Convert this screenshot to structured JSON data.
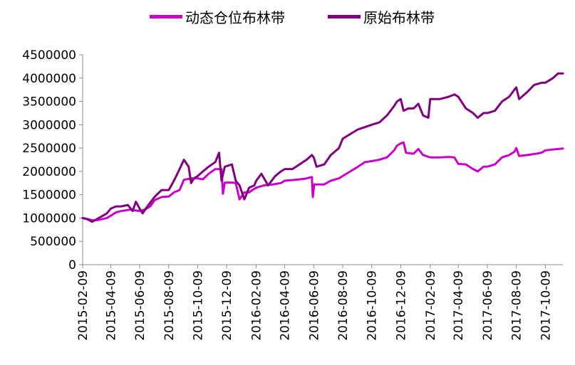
{
  "chart_data": {
    "type": "line",
    "title": "",
    "xlabel": "",
    "ylabel": "",
    "ylim": [
      0,
      4500000
    ],
    "y_ticks": [
      0,
      500000,
      1000000,
      1500000,
      2000000,
      2500000,
      3000000,
      3500000,
      4000000,
      4500000
    ],
    "y_tick_labels": [
      "0",
      "500000",
      "1000000",
      "1500000",
      "2000000",
      "2500000",
      "3000000",
      "3500000",
      "4000000",
      "4500000"
    ],
    "x_tick_labels": [
      "2015-02-09",
      "2015-04-09",
      "2015-06-09",
      "2015-08-09",
      "2015-10-09",
      "2015-12-09",
      "2016-02-09",
      "2016-04-09",
      "2016-06-09",
      "2016-08-09",
      "2016-10-09",
      "2016-12-09",
      "2017-02-09",
      "2017-04-09",
      "2017-06-09",
      "2017-08-09",
      "2017-10-09"
    ],
    "x_range": [
      "2015-02-09",
      "2017-11-15"
    ],
    "grid": false,
    "legend_position": "top",
    "series": [
      {
        "name": "动态仓位布林带",
        "color": "#cc00cc",
        "points": [
          [
            "2015-02-09",
            1000000
          ],
          [
            "2015-02-20",
            980000
          ],
          [
            "2015-03-01",
            950000
          ],
          [
            "2015-03-15",
            960000
          ],
          [
            "2015-04-01",
            1000000
          ],
          [
            "2015-04-09",
            1050000
          ],
          [
            "2015-04-20",
            1120000
          ],
          [
            "2015-05-01",
            1150000
          ],
          [
            "2015-05-20",
            1180000
          ],
          [
            "2015-06-09",
            1150000
          ],
          [
            "2015-06-20",
            1180000
          ],
          [
            "2015-07-01",
            1250000
          ],
          [
            "2015-07-10",
            1380000
          ],
          [
            "2015-07-25",
            1450000
          ],
          [
            "2015-08-09",
            1460000
          ],
          [
            "2015-08-20",
            1550000
          ],
          [
            "2015-09-01",
            1600000
          ],
          [
            "2015-09-10",
            1820000
          ],
          [
            "2015-09-25",
            1850000
          ],
          [
            "2015-10-09",
            1850000
          ],
          [
            "2015-10-20",
            1830000
          ],
          [
            "2015-11-01",
            1950000
          ],
          [
            "2015-11-15",
            2050000
          ],
          [
            "2015-11-28",
            2050000
          ],
          [
            "2015-12-01",
            1520000
          ],
          [
            "2015-12-05",
            1760000
          ],
          [
            "2015-12-20",
            1760000
          ],
          [
            "2015-12-28",
            1750000
          ],
          [
            "2016-01-05",
            1400000
          ],
          [
            "2016-01-15",
            1550000
          ],
          [
            "2016-01-25",
            1550000
          ],
          [
            "2016-02-01",
            1600000
          ],
          [
            "2016-02-09",
            1650000
          ],
          [
            "2016-02-25",
            1700000
          ],
          [
            "2016-03-15",
            1720000
          ],
          [
            "2016-04-01",
            1750000
          ],
          [
            "2016-04-09",
            1800000
          ],
          [
            "2016-05-01",
            1820000
          ],
          [
            "2016-05-20",
            1840000
          ],
          [
            "2016-06-05",
            1880000
          ],
          [
            "2016-06-07",
            1450000
          ],
          [
            "2016-06-10",
            1720000
          ],
          [
            "2016-07-01",
            1720000
          ],
          [
            "2016-07-15",
            1800000
          ],
          [
            "2016-08-01",
            1850000
          ],
          [
            "2016-08-09",
            1900000
          ],
          [
            "2016-08-25",
            2000000
          ],
          [
            "2016-09-10",
            2100000
          ],
          [
            "2016-09-25",
            2200000
          ],
          [
            "2016-10-09",
            2220000
          ],
          [
            "2016-10-25",
            2250000
          ],
          [
            "2016-11-10",
            2300000
          ],
          [
            "2016-11-25",
            2450000
          ],
          [
            "2016-12-01",
            2550000
          ],
          [
            "2016-12-09",
            2600000
          ],
          [
            "2016-12-15",
            2620000
          ],
          [
            "2016-12-20",
            2400000
          ],
          [
            "2017-01-05",
            2380000
          ],
          [
            "2017-01-15",
            2480000
          ],
          [
            "2017-01-25",
            2350000
          ],
          [
            "2017-02-09",
            2300000
          ],
          [
            "2017-03-01",
            2300000
          ],
          [
            "2017-03-20",
            2310000
          ],
          [
            "2017-04-01",
            2300000
          ],
          [
            "2017-04-09",
            2160000
          ],
          [
            "2017-04-25",
            2150000
          ],
          [
            "2017-05-10",
            2050000
          ],
          [
            "2017-05-20",
            2000000
          ],
          [
            "2017-06-01",
            2100000
          ],
          [
            "2017-06-09",
            2100000
          ],
          [
            "2017-06-25",
            2150000
          ],
          [
            "2017-07-10",
            2300000
          ],
          [
            "2017-07-25",
            2350000
          ],
          [
            "2017-08-05",
            2420000
          ],
          [
            "2017-08-09",
            2500000
          ],
          [
            "2017-08-15",
            2330000
          ],
          [
            "2017-09-01",
            2350000
          ],
          [
            "2017-09-20",
            2380000
          ],
          [
            "2017-10-01",
            2400000
          ],
          [
            "2017-10-09",
            2450000
          ],
          [
            "2017-10-25",
            2470000
          ],
          [
            "2017-11-15",
            2490000
          ]
        ]
      },
      {
        "name": "原始布林带",
        "color": "#800080",
        "points": [
          [
            "2015-02-09",
            1000000
          ],
          [
            "2015-02-20",
            970000
          ],
          [
            "2015-03-01",
            920000
          ],
          [
            "2015-03-15",
            1000000
          ],
          [
            "2015-04-01",
            1100000
          ],
          [
            "2015-04-09",
            1200000
          ],
          [
            "2015-04-20",
            1250000
          ],
          [
            "2015-05-01",
            1250000
          ],
          [
            "2015-05-15",
            1280000
          ],
          [
            "2015-05-25",
            1150000
          ],
          [
            "2015-06-01",
            1350000
          ],
          [
            "2015-06-09",
            1200000
          ],
          [
            "2015-06-15",
            1100000
          ],
          [
            "2015-06-25",
            1250000
          ],
          [
            "2015-07-10",
            1450000
          ],
          [
            "2015-07-25",
            1600000
          ],
          [
            "2015-08-09",
            1600000
          ],
          [
            "2015-08-20",
            1800000
          ],
          [
            "2015-09-01",
            2050000
          ],
          [
            "2015-09-10",
            2250000
          ],
          [
            "2015-09-20",
            2100000
          ],
          [
            "2015-09-25",
            1750000
          ],
          [
            "2015-10-01",
            1850000
          ],
          [
            "2015-10-09",
            1900000
          ],
          [
            "2015-10-20",
            2000000
          ],
          [
            "2015-11-01",
            2100000
          ],
          [
            "2015-11-15",
            2200000
          ],
          [
            "2015-11-23",
            2400000
          ],
          [
            "2015-11-28",
            1800000
          ],
          [
            "2015-12-05",
            2100000
          ],
          [
            "2015-12-20",
            2150000
          ],
          [
            "2015-12-28",
            1800000
          ],
          [
            "2016-01-05",
            1700000
          ],
          [
            "2016-01-15",
            1400000
          ],
          [
            "2016-01-25",
            1650000
          ],
          [
            "2016-02-05",
            1700000
          ],
          [
            "2016-02-09",
            1800000
          ],
          [
            "2016-02-20",
            1950000
          ],
          [
            "2016-03-05",
            1700000
          ],
          [
            "2016-03-20",
            1900000
          ],
          [
            "2016-04-01",
            2000000
          ],
          [
            "2016-04-09",
            2050000
          ],
          [
            "2016-04-25",
            2050000
          ],
          [
            "2016-05-10",
            2150000
          ],
          [
            "2016-05-25",
            2250000
          ],
          [
            "2016-06-05",
            2350000
          ],
          [
            "2016-06-09",
            2300000
          ],
          [
            "2016-06-15",
            2100000
          ],
          [
            "2016-07-01",
            2150000
          ],
          [
            "2016-07-15",
            2350000
          ],
          [
            "2016-08-01",
            2500000
          ],
          [
            "2016-08-09",
            2700000
          ],
          [
            "2016-08-25",
            2800000
          ],
          [
            "2016-09-10",
            2900000
          ],
          [
            "2016-09-25",
            2950000
          ],
          [
            "2016-10-09",
            3000000
          ],
          [
            "2016-10-25",
            3050000
          ],
          [
            "2016-11-10",
            3200000
          ],
          [
            "2016-11-25",
            3400000
          ],
          [
            "2016-12-01",
            3500000
          ],
          [
            "2016-12-09",
            3550000
          ],
          [
            "2016-12-15",
            3300000
          ],
          [
            "2016-12-25",
            3350000
          ],
          [
            "2017-01-05",
            3350000
          ],
          [
            "2017-01-15",
            3450000
          ],
          [
            "2017-01-25",
            3200000
          ],
          [
            "2017-02-05",
            3150000
          ],
          [
            "2017-02-09",
            3550000
          ],
          [
            "2017-03-01",
            3550000
          ],
          [
            "2017-03-20",
            3600000
          ],
          [
            "2017-04-01",
            3650000
          ],
          [
            "2017-04-09",
            3600000
          ],
          [
            "2017-04-25",
            3350000
          ],
          [
            "2017-05-10",
            3250000
          ],
          [
            "2017-05-20",
            3150000
          ],
          [
            "2017-06-01",
            3250000
          ],
          [
            "2017-06-09",
            3250000
          ],
          [
            "2017-06-25",
            3300000
          ],
          [
            "2017-07-10",
            3500000
          ],
          [
            "2017-07-25",
            3600000
          ],
          [
            "2017-08-05",
            3750000
          ],
          [
            "2017-08-09",
            3800000
          ],
          [
            "2017-08-15",
            3550000
          ],
          [
            "2017-09-01",
            3700000
          ],
          [
            "2017-09-15",
            3850000
          ],
          [
            "2017-10-01",
            3900000
          ],
          [
            "2017-10-09",
            3900000
          ],
          [
            "2017-10-25",
            4000000
          ],
          [
            "2017-11-05",
            4100000
          ],
          [
            "2017-11-15",
            4100000
          ]
        ]
      }
    ]
  }
}
